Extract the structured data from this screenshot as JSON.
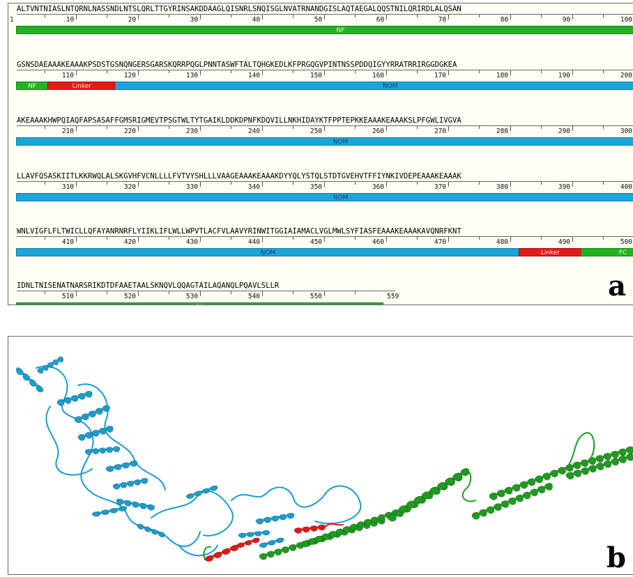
{
  "panel_a": {
    "label": "a",
    "rows": [
      {
        "sequence": "ALTVNTNIASLNTQRNLNASSNDLNTSLQRLTTGYRINSAKDDAAGLQISNRLSNQISGLNVATRNANDGISLAQTAEGALQQSTNILQRIRDLALQSAN",
        "start_label": "1",
        "numbers": [
          "10",
          "20",
          "30",
          "40",
          "50",
          "60",
          "70",
          "80",
          "90",
          "100"
        ],
        "domains": [
          {
            "label": "NF",
            "type": "nf",
            "start": 1,
            "end": 100
          }
        ]
      },
      {
        "sequence": "GSNSDAEAAAKEAAAKPSDSTGSNQNGERSGARSKQRRPQGLPNNTASWFTALTQHGKEDLKFPRGQGVPINTNSSPDDQIGYYRRATRRIRGGDGKEA",
        "numbers": [
          "110",
          "120",
          "130",
          "140",
          "150",
          "160",
          "170",
          "180",
          "190",
          "200"
        ],
        "domains": [
          {
            "label": "NF",
            "type": "nf",
            "start": 101,
            "end": 105
          },
          {
            "label": "Linker",
            "type": "linker",
            "start": 106,
            "end": 116
          },
          {
            "label": "NOM",
            "type": "nom",
            "start": 117,
            "end": 200
          }
        ]
      },
      {
        "sequence": "AKEAAAKHWPQIAQFAPSASAFFGMSRIGMEVTPSGTWLTYTGAIKLDDKDPNFKDQVILLNKHIDAYKTFPPTEPKKEAAAKEAAAKSLPFGWLIVGVA",
        "numbers": [
          "210",
          "220",
          "230",
          "240",
          "250",
          "260",
          "270",
          "280",
          "290",
          "300"
        ],
        "domains": [
          {
            "label": "NOM",
            "type": "nom",
            "start": 201,
            "end": 300
          }
        ]
      },
      {
        "sequence": "LLAVFQSASKIITLKKRWQLALSKGVHFVCNLLLLFVTVYSHLLLVAAGEAAAKEAAAKDYYQLYSTQLSTDTGVEHVTFFIYNKIVDEPEAAAKEAAAK",
        "numbers": [
          "310",
          "320",
          "330",
          "340",
          "350",
          "360",
          "370",
          "380",
          "390",
          "400"
        ],
        "domains": [
          {
            "label": "NOM",
            "type": "nom",
            "start": 301,
            "end": 400
          }
        ]
      },
      {
        "sequence": "WNLVIGFLFLTWICLLQFAYANRNRFLYIIKLIFLWLLWPVTLACFVLAAVYRINWITGGIAIAMACLVGLMWLSYFIASFEAAAKEAAAKAVQNRFKNT",
        "numbers": [
          "410",
          "420",
          "430",
          "440",
          "450",
          "460",
          "470",
          "480",
          "490",
          "500"
        ],
        "domains": [
          {
            "label": "NOM",
            "type": "nom",
            "start": 401,
            "end": 481
          },
          {
            "label": "Linker",
            "type": "linker",
            "start": 482,
            "end": 491
          },
          {
            "label": "FC",
            "type": "fc",
            "start": 492,
            "end": 500
          }
        ]
      },
      {
        "sequence": "IDNLTNISENATNARSRIKDTDFAAETAALSKNQVLQQAGTAILAQANQLPQAVLSLLR",
        "numbers": [
          "510",
          "520",
          "530",
          "540",
          "550"
        ],
        "end_label": "559",
        "domains": [
          {
            "label": "FC",
            "type": "fc",
            "start": 501,
            "end": 559
          }
        ]
      }
    ]
  },
  "panel_b": {
    "label": "b",
    "colors": {
      "nom": "#1a9ccc",
      "linker": "#e01818",
      "fc": "#1f9a1f"
    }
  }
}
